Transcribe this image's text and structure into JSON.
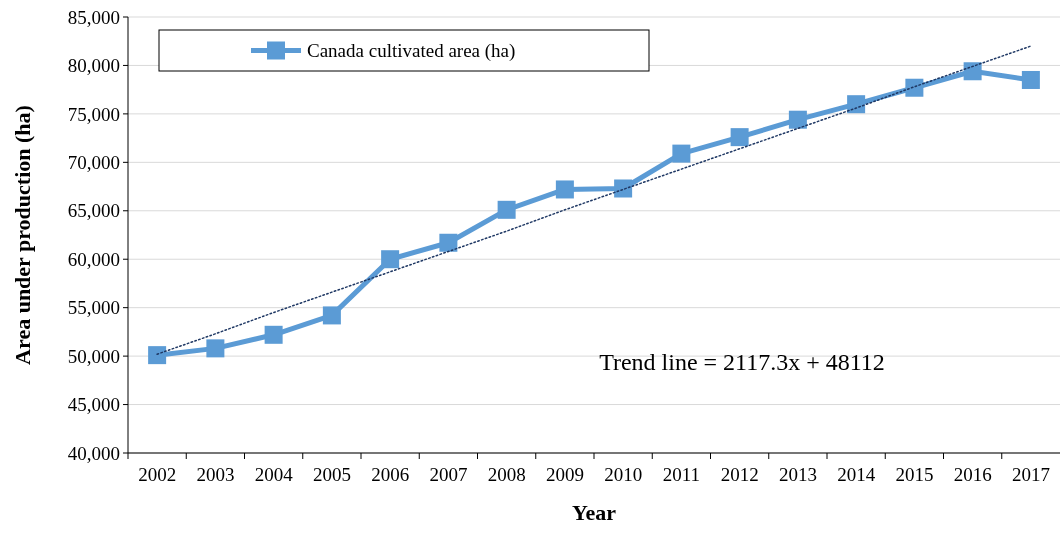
{
  "chart_data": {
    "type": "line",
    "xlabel": "Year",
    "ylabel": "Area under production (ha)",
    "categories": [
      "2002",
      "2003",
      "2004",
      "2005",
      "2006",
      "2007",
      "2008",
      "2009",
      "2010",
      "2011",
      "2012",
      "2013",
      "2014",
      "2015",
      "2016",
      "2017"
    ],
    "series": [
      {
        "name": "Canada cultivated area (ha)",
        "color": "#5b9bd5",
        "marker": "square",
        "line_style": "solid",
        "values": [
          50100,
          50800,
          52200,
          54200,
          60000,
          61700,
          65100,
          67200,
          67300,
          70900,
          72600,
          74400,
          76000,
          77700,
          79400,
          78500
        ]
      },
      {
        "type": "line",
        "color": "#1f3864",
        "marker": "none",
        "line_style": "dotted",
        "values": [
          50200,
          52300,
          54500,
          56600,
          58700,
          60800,
          62900,
          65100,
          67200,
          69300,
          71400,
          73500,
          75600,
          77800,
          79900,
          82000
        ]
      }
    ],
    "ylim": [
      40000,
      85000
    ],
    "yticks": [
      {
        "value": 40000,
        "label": "40,000"
      },
      {
        "value": 45000,
        "label": "45,000"
      },
      {
        "value": 50000,
        "label": "50,000"
      },
      {
        "value": 55000,
        "label": "55,000"
      },
      {
        "value": 60000,
        "label": "60,000"
      },
      {
        "value": 65000,
        "label": "65,000"
      },
      {
        "value": 70000,
        "label": "70,000"
      },
      {
        "value": 75000,
        "label": "75,000"
      },
      {
        "value": 80000,
        "label": "80,000"
      },
      {
        "value": 85000,
        "label": "85,000"
      }
    ],
    "grid": "y",
    "legend": "top left",
    "annotations": [
      "Trend line = 2117.3x + 48112"
    ]
  }
}
